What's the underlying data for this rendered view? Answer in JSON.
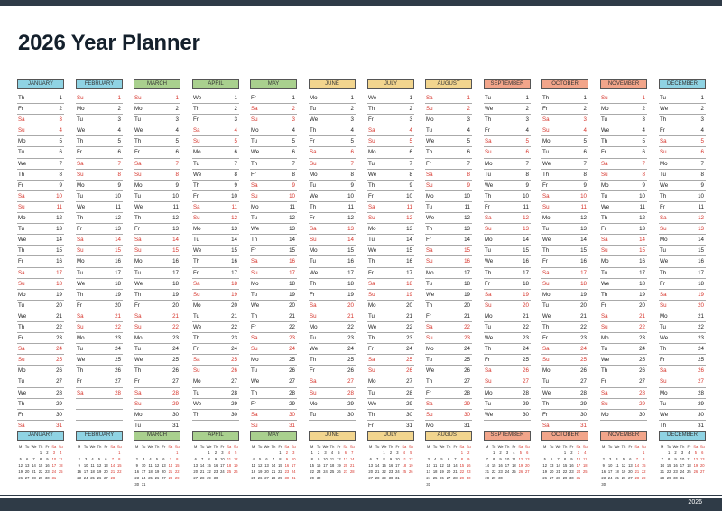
{
  "title": "2026 Year Planner",
  "footer_year": "2026",
  "weekday_header": [
    "M",
    "Tu",
    "We",
    "Th",
    "Fr",
    "Sa",
    "Su"
  ],
  "months": [
    {
      "name": "JANUARY",
      "color": "#8fd3e3",
      "first_wd": 3,
      "days": 31
    },
    {
      "name": "FEBRUARY",
      "color": "#8fd3e3",
      "first_wd": 6,
      "days": 28
    },
    {
      "name": "MARCH",
      "color": "#a9d08e",
      "first_wd": 6,
      "days": 31
    },
    {
      "name": "APRIL",
      "color": "#a9d08e",
      "first_wd": 2,
      "days": 30
    },
    {
      "name": "MAY",
      "color": "#a9d08e",
      "first_wd": 4,
      "days": 31
    },
    {
      "name": "JUNE",
      "color": "#f2d58e",
      "first_wd": 0,
      "days": 30
    },
    {
      "name": "JULY",
      "color": "#f2d58e",
      "first_wd": 2,
      "days": 31
    },
    {
      "name": "AUGUST",
      "color": "#f2d58e",
      "first_wd": 5,
      "days": 31
    },
    {
      "name": "SEPTEMBER",
      "color": "#f2a58a",
      "first_wd": 1,
      "days": 30
    },
    {
      "name": "OCTOBER",
      "color": "#f2a58a",
      "first_wd": 3,
      "days": 31
    },
    {
      "name": "NOVEMBER",
      "color": "#f2a58a",
      "first_wd": 6,
      "days": 30
    },
    {
      "name": "DECEMBER",
      "color": "#8fd3e3",
      "first_wd": 1,
      "days": 31
    }
  ],
  "day_abbr": [
    "Mo",
    "Tu",
    "We",
    "Th",
    "Fr",
    "Sa",
    "Su"
  ],
  "weekend_color": "#d6332a"
}
